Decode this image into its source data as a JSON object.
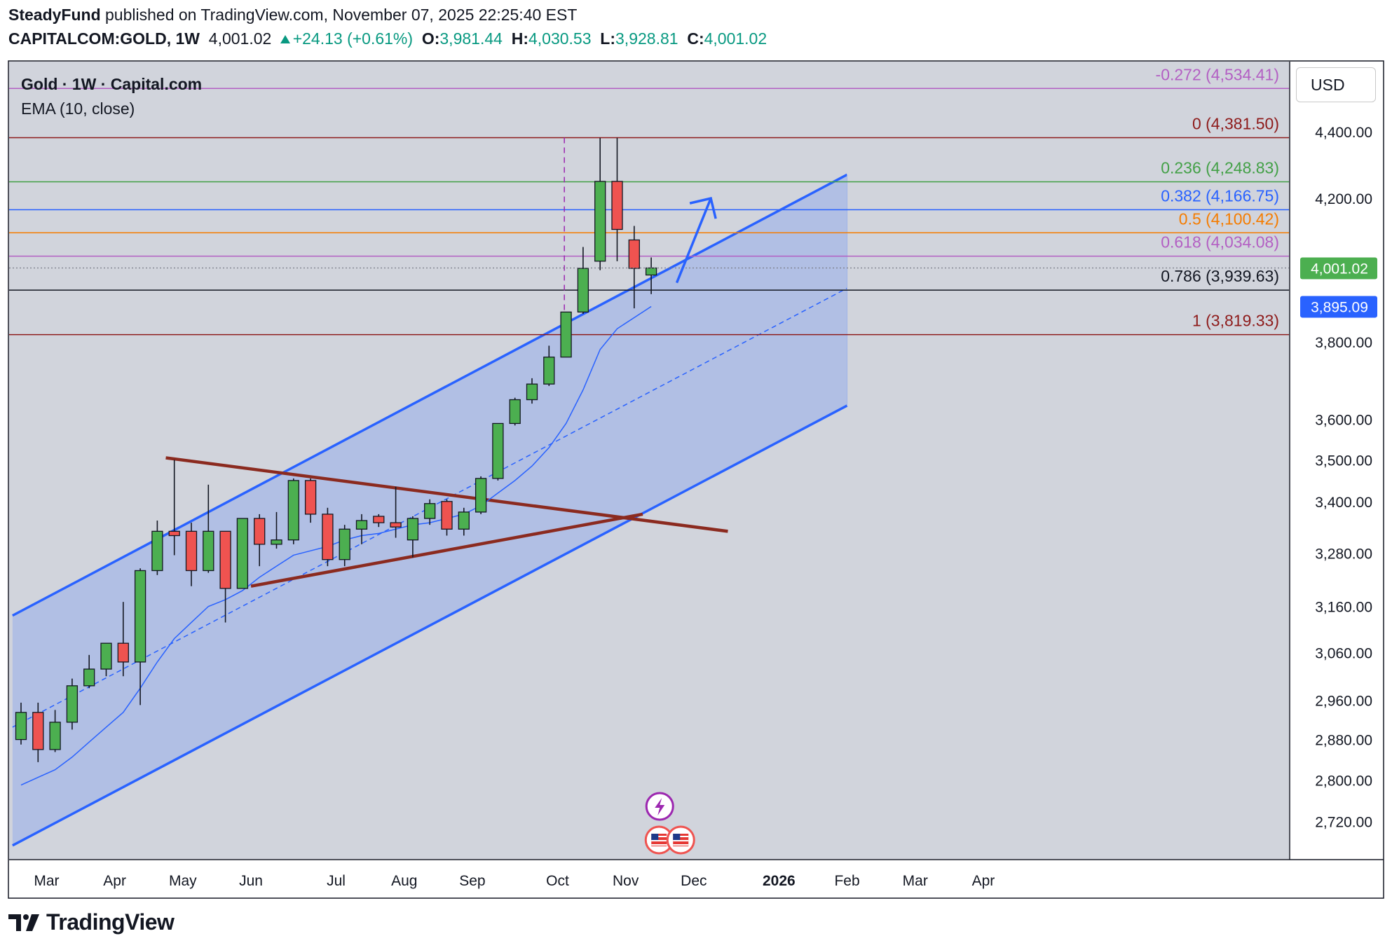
{
  "header": {
    "author": "SteadyFund",
    "published_text": "published on TradingView.com, November 07, 2025 22:25:40 EST",
    "symbol": "CAPITALCOM:GOLD, 1W",
    "last_price": "4,001.02",
    "change": "+24.13 (+0.61%)",
    "o_label": "O:",
    "o_value": "3,981.44",
    "h_label": "H:",
    "h_value": "4,030.53",
    "l_label": "L:",
    "l_value": "3,928.81",
    "c_label": "C:",
    "c_value": "4,001.02"
  },
  "legend": {
    "title": "Gold · 1W · Capital.com",
    "indicator": "EMA (10, close)"
  },
  "currency_button": "USD",
  "footer": {
    "brand": "TradingView"
  },
  "colors": {
    "up": "#4caf50",
    "down": "#ef5350",
    "channel_line": "#2962ff",
    "channel_fill": "#9fb3e8",
    "triangle": "#8b2a1f",
    "plot_bg": "#d1d4dc",
    "last_price_tag": "#4caf50",
    "ema_tag": "#2962ff"
  },
  "chart_data": {
    "type": "candlestick",
    "title": "Gold · 1W · Capital.com",
    "y_scale": "log",
    "ylim": [
      2650,
      4620
    ],
    "y_ticks": [
      {
        "value": 4400,
        "label": "4,400.00"
      },
      {
        "value": 4200,
        "label": "4,200.00"
      },
      {
        "value": 3800,
        "label": "3,800.00"
      },
      {
        "value": 3600,
        "label": "3,600.00"
      },
      {
        "value": 3500,
        "label": "3,500.00"
      },
      {
        "value": 3400,
        "label": "3,400.00"
      },
      {
        "value": 3280,
        "label": "3,280.00"
      },
      {
        "value": 3160,
        "label": "3,160.00"
      },
      {
        "value": 3060,
        "label": "3,060.00"
      },
      {
        "value": 2960,
        "label": "2,960.00"
      },
      {
        "value": 2880,
        "label": "2,880.00"
      },
      {
        "value": 2800,
        "label": "2,800.00"
      },
      {
        "value": 2720,
        "label": "2,720.00"
      }
    ],
    "x_ticks": [
      {
        "week": 1.5,
        "label": "Mar",
        "bold": false
      },
      {
        "week": 5.5,
        "label": "Apr",
        "bold": false
      },
      {
        "week": 9.5,
        "label": "May",
        "bold": false
      },
      {
        "week": 13.5,
        "label": "Jun",
        "bold": false
      },
      {
        "week": 18.5,
        "label": "Jul",
        "bold": false
      },
      {
        "week": 22.5,
        "label": "Aug",
        "bold": false
      },
      {
        "week": 26.5,
        "label": "Sep",
        "bold": false
      },
      {
        "week": 31.5,
        "label": "Oct",
        "bold": false
      },
      {
        "week": 35.5,
        "label": "Nov",
        "bold": false
      },
      {
        "week": 39.5,
        "label": "Dec",
        "bold": false
      },
      {
        "week": 44.5,
        "label": "2026",
        "bold": true
      },
      {
        "week": 48.5,
        "label": "Feb",
        "bold": false
      },
      {
        "week": 52.5,
        "label": "Mar",
        "bold": false
      },
      {
        "week": 56.5,
        "label": "Apr",
        "bold": false
      }
    ],
    "candles": [
      {
        "o": 2880,
        "h": 2955,
        "l": 2870,
        "c": 2935
      },
      {
        "o": 2935,
        "h": 2955,
        "l": 2835,
        "c": 2860
      },
      {
        "o": 2860,
        "h": 2940,
        "l": 2855,
        "c": 2915
      },
      {
        "o": 2915,
        "h": 3005,
        "l": 2900,
        "c": 2990
      },
      {
        "o": 2990,
        "h": 3055,
        "l": 2985,
        "c": 3025
      },
      {
        "o": 3025,
        "h": 3080,
        "l": 3010,
        "c": 3080
      },
      {
        "o": 3080,
        "h": 3170,
        "l": 3010,
        "c": 3040
      },
      {
        "o": 3040,
        "h": 3245,
        "l": 2950,
        "c": 3240
      },
      {
        "o": 3240,
        "h": 3355,
        "l": 3230,
        "c": 3330
      },
      {
        "o": 3330,
        "h": 3500,
        "l": 3275,
        "c": 3320
      },
      {
        "o": 3330,
        "h": 3350,
        "l": 3205,
        "c": 3240
      },
      {
        "o": 3240,
        "h": 3440,
        "l": 3235,
        "c": 3330
      },
      {
        "o": 3330,
        "h": 3330,
        "l": 3125,
        "c": 3200
      },
      {
        "o": 3200,
        "h": 3360,
        "l": 3205,
        "c": 3360
      },
      {
        "o": 3360,
        "h": 3370,
        "l": 3250,
        "c": 3300
      },
      {
        "o": 3300,
        "h": 3375,
        "l": 3290,
        "c": 3310
      },
      {
        "o": 3310,
        "h": 3455,
        "l": 3300,
        "c": 3450
      },
      {
        "o": 3450,
        "h": 3455,
        "l": 3350,
        "c": 3370
      },
      {
        "o": 3370,
        "h": 3385,
        "l": 3250,
        "c": 3265
      },
      {
        "o": 3265,
        "h": 3345,
        "l": 3250,
        "c": 3335
      },
      {
        "o": 3335,
        "h": 3370,
        "l": 3300,
        "c": 3355
      },
      {
        "o": 3365,
        "h": 3370,
        "l": 3340,
        "c": 3350
      },
      {
        "o": 3350,
        "h": 3435,
        "l": 3315,
        "c": 3340
      },
      {
        "o": 3310,
        "h": 3365,
        "l": 3270,
        "c": 3360
      },
      {
        "o": 3360,
        "h": 3405,
        "l": 3345,
        "c": 3395
      },
      {
        "o": 3400,
        "h": 3405,
        "l": 3320,
        "c": 3335
      },
      {
        "o": 3335,
        "h": 3385,
        "l": 3320,
        "c": 3375
      },
      {
        "o": 3375,
        "h": 3460,
        "l": 3370,
        "c": 3455
      },
      {
        "o": 3455,
        "h": 3590,
        "l": 3450,
        "c": 3590
      },
      {
        "o": 3590,
        "h": 3655,
        "l": 3585,
        "c": 3650
      },
      {
        "o": 3650,
        "h": 3705,
        "l": 3640,
        "c": 3690
      },
      {
        "o": 3690,
        "h": 3790,
        "l": 3685,
        "c": 3760
      },
      {
        "o": 3760,
        "h": 3880,
        "l": 3760,
        "c": 3880
      },
      {
        "o": 3880,
        "h": 4060,
        "l": 3875,
        "c": 4000
      },
      {
        "o": 4020,
        "h": 4381,
        "l": 3995,
        "c": 4250
      },
      {
        "o": 4250,
        "h": 4381,
        "l": 4020,
        "c": 4110
      },
      {
        "o": 4080,
        "h": 4120,
        "l": 3890,
        "c": 4000
      },
      {
        "o": 3981.44,
        "h": 4030.53,
        "l": 3928.81,
        "c": 4001.02
      }
    ],
    "ema_10": [
      2790,
      2805,
      2820,
      2845,
      2875,
      2905,
      2935,
      2985,
      3040,
      3090,
      3125,
      3160,
      3175,
      3195,
      3225,
      3250,
      3275,
      3285,
      3295,
      3310,
      3320,
      3325,
      3335,
      3345,
      3350,
      3360,
      3370,
      3390,
      3420,
      3450,
      3485,
      3530,
      3590,
      3675,
      3780,
      3835,
      3865,
      3895
    ],
    "fibonacci": [
      {
        "level": "-0.272",
        "price": 4534.41,
        "label": "-0.272 (4,534.41)",
        "color": "#b35fc3"
      },
      {
        "level": "0",
        "price": 4381.5,
        "label": "0 (4,381.50)",
        "color": "#8e1b1b"
      },
      {
        "level": "0.236",
        "price": 4248.83,
        "label": "0.236 (4,248.83)",
        "color": "#43a047"
      },
      {
        "level": "0.382",
        "price": 4166.75,
        "label": "0.382 (4,166.75)",
        "color": "#2962ff"
      },
      {
        "level": "0.5",
        "price": 4100.42,
        "label": "0.5 (4,100.42)",
        "color": "#f57c00"
      },
      {
        "level": "0.618",
        "price": 4034.08,
        "label": "0.618 (4,034.08)",
        "color": "#b35fc3"
      },
      {
        "level": "0.786",
        "price": 3939.63,
        "label": "0.786 (3,939.63)",
        "color": "#131722"
      },
      {
        "level": "1",
        "price": 3819.33,
        "label": "1 (3,819.33)",
        "color": "#8e1b1b"
      }
    ],
    "channel": {
      "start_week": -0.5,
      "end_week": 48.5,
      "upper": [
        3140,
        4270
      ],
      "middle": [
        2905,
        3945
      ],
      "lower": [
        2675,
        3635
      ]
    },
    "triangle": {
      "upper": {
        "from_week": 8.5,
        "from_price": 3505,
        "to_week": 41.5,
        "to_price": 3330
      },
      "lower": {
        "from_week": 13.5,
        "from_price": 3205,
        "to_week": 36.5,
        "to_price": 3370
      }
    },
    "arrow": {
      "from_week": 38.5,
      "from_price": 3960,
      "to_week": 40.5,
      "to_price": 4200
    },
    "price_tags": [
      {
        "value": 4001.02,
        "label": "4,001.02",
        "kind": "last"
      },
      {
        "value": 3895.09,
        "label": "3,895.09",
        "kind": "ema"
      }
    ],
    "event_marker_week": 37.5
  }
}
